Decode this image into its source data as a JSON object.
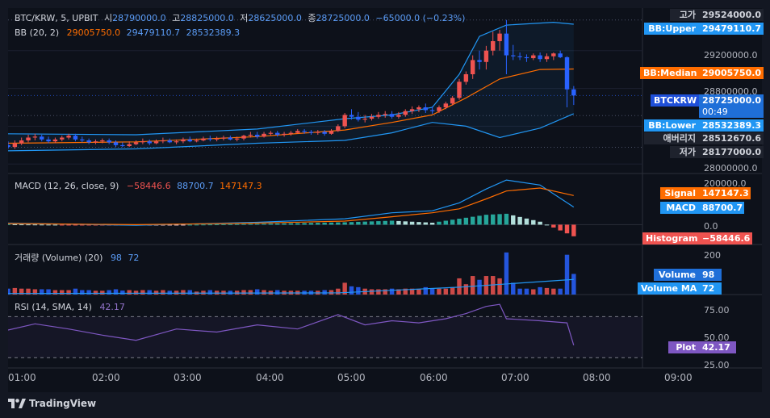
{
  "header": {
    "symbol": "BTC/KRW, 5, UPBIT",
    "open_label": "시",
    "open_value": "28790000.0",
    "high_label": "고",
    "high_value": "28825000.0",
    "low_label": "저",
    "low_value": "28625000.0",
    "close_label": "종",
    "close_value": "28725000.0",
    "change": "−65000.0 (−0.23%)"
  },
  "bb_legend": {
    "name": "BB (20, 2)",
    "median": "29005750.0",
    "upper": "29479110.7",
    "lower": "28532389.3"
  },
  "macd_legend": {
    "name": "MACD (12, 26, close, 9)",
    "hist": "−58446.6",
    "macd": "88700.7",
    "signal": "147147.3"
  },
  "vol_legend": {
    "name": "거래량 (Volume) (20)",
    "volume": "98",
    "ma": "72"
  },
  "rsi_legend": {
    "name": "RSI (14, SMA, 14)",
    "value": "42.17"
  },
  "price_axis": [
    "29200000.0",
    "28800000.0",
    "28000000.0"
  ],
  "macd_axis": [
    "200000.0",
    "0.0"
  ],
  "vol_axis": [
    "200"
  ],
  "rsi_axis": [
    "75.00",
    "50.00",
    "25.00"
  ],
  "price_badges": {
    "high": {
      "label": "고가",
      "value": "29524000.0"
    },
    "bb_upper": {
      "label": "BB:Upper",
      "value": "29479110.7"
    },
    "bb_median": {
      "label": "BB:Median",
      "value": "29005750.0"
    },
    "last": {
      "label": "BTCKRW",
      "value": "28725000.0",
      "countdown": "00:49"
    },
    "bb_lower": {
      "label": "BB:Lower",
      "value": "28532389.3"
    },
    "avg": {
      "label": "애버리지",
      "value": "28512670.6"
    },
    "low": {
      "label": "저가",
      "value": "28177000.0"
    }
  },
  "macd_badges": {
    "signal": {
      "label": "Signal",
      "value": "147147.3"
    },
    "macd": {
      "label": "MACD",
      "value": "88700.7"
    },
    "histogram": {
      "label": "Histogram",
      "value": "−58446.6"
    }
  },
  "vol_badges": {
    "volume": {
      "label": "Volume",
      "value": "98"
    },
    "ma": {
      "label": "Volume MA",
      "value": "72"
    }
  },
  "rsi_badges": {
    "plot": {
      "label": "Plot",
      "value": "42.17"
    }
  },
  "time_axis": [
    "01:00",
    "02:00",
    "03:00",
    "04:00",
    "05:00",
    "06:00",
    "07:00",
    "08:00",
    "09:00"
  ],
  "brand": "TradingView",
  "colors": {
    "up": "#ef5350",
    "down": "#2962ff",
    "bb_band": "#2196f3",
    "bb_median": "#ff6d00",
    "macd_line": "#2196f3",
    "signal_line": "#ff6d00",
    "hist_up": "#26a69a",
    "hist_down": "#ef5350",
    "rsi": "#7e57c2",
    "background": "#0d111a"
  },
  "chart_data": {
    "type": "candlestick",
    "symbol": "BTC/KRW",
    "interval": "5",
    "x_range": [
      "00:55",
      "09:10"
    ],
    "ylim": [
      27900000,
      29650000
    ],
    "x": [
      "00:55",
      "01:00",
      "01:05",
      "01:10",
      "01:15",
      "01:20",
      "01:25",
      "01:30",
      "01:35",
      "01:40",
      "01:45",
      "01:50",
      "01:55",
      "02:00",
      "02:05",
      "02:10",
      "02:15",
      "02:20",
      "02:25",
      "02:30",
      "02:35",
      "02:40",
      "02:45",
      "02:50",
      "02:55",
      "03:00",
      "03:05",
      "03:10",
      "03:15",
      "03:20",
      "03:25",
      "03:30",
      "03:35",
      "03:40",
      "03:45",
      "03:50",
      "03:55",
      "04:00",
      "04:05",
      "04:10",
      "04:15",
      "04:20",
      "04:25",
      "04:30",
      "04:35",
      "04:40",
      "04:45",
      "04:50",
      "04:55",
      "05:00",
      "05:05",
      "05:10",
      "05:15",
      "05:20",
      "05:25",
      "05:30",
      "05:35",
      "05:40",
      "05:45",
      "05:50",
      "05:55",
      "06:00",
      "06:05",
      "06:10",
      "06:15",
      "06:20",
      "06:25",
      "06:30",
      "06:35",
      "06:40",
      "06:45",
      "06:50",
      "06:55",
      "07:00",
      "07:05",
      "07:10",
      "07:15",
      "07:20",
      "07:25",
      "07:30",
      "07:35",
      "07:40",
      "07:45",
      "07:50",
      "07:55"
    ],
    "open": [
      28200000,
      28180000,
      28220000,
      28250000,
      28280000,
      28290000,
      28260000,
      28240000,
      28260000,
      28280000,
      28300000,
      28260000,
      28250000,
      28230000,
      28240000,
      28250000,
      28230000,
      28200000,
      28190000,
      28210000,
      28230000,
      28240000,
      28220000,
      28240000,
      28250000,
      28230000,
      28240000,
      28260000,
      28240000,
      28250000,
      28270000,
      28260000,
      28270000,
      28280000,
      28260000,
      28270000,
      28300000,
      28310000,
      28290000,
      28320000,
      28330000,
      28310000,
      28320000,
      28330000,
      28350000,
      28340000,
      28330000,
      28340000,
      28320000,
      28350000,
      28400000,
      28520000,
      28500000,
      28470000,
      28480000,
      28500000,
      28520000,
      28530000,
      28500000,
      28520000,
      28560000,
      28580000,
      28600000,
      28570000,
      28560000,
      28600000,
      28640000,
      28700000,
      28870000,
      28950000,
      29100000,
      29080000,
      29200000,
      29300000,
      29380000,
      29150000,
      29140000,
      29130000,
      29120000,
      29150000,
      29110000,
      29140000,
      29170000,
      29130000,
      28790000
    ],
    "high": [
      28240000,
      28250000,
      28280000,
      28310000,
      28320000,
      28310000,
      28290000,
      28280000,
      28300000,
      28320000,
      28320000,
      28290000,
      28270000,
      28260000,
      28270000,
      28270000,
      28250000,
      28230000,
      28240000,
      28250000,
      28270000,
      28260000,
      28260000,
      28280000,
      28270000,
      28260000,
      28280000,
      28290000,
      28270000,
      28290000,
      28300000,
      28290000,
      28300000,
      28300000,
      28290000,
      28310000,
      28340000,
      28340000,
      28340000,
      28350000,
      28350000,
      28340000,
      28350000,
      28370000,
      28370000,
      28360000,
      28360000,
      28360000,
      28370000,
      28420000,
      28540000,
      28580000,
      28550000,
      28520000,
      28530000,
      28550000,
      28560000,
      28560000,
      28550000,
      28580000,
      28610000,
      28620000,
      28640000,
      28610000,
      28620000,
      28660000,
      28720000,
      28900000,
      28980000,
      29150000,
      29200000,
      29250000,
      29400000,
      29420000,
      29524000,
      29260000,
      29180000,
      29160000,
      29170000,
      29180000,
      29170000,
      29180000,
      29200000,
      29140000,
      28825000
    ],
    "low": [
      28160000,
      28160000,
      28200000,
      28230000,
      28250000,
      28240000,
      28220000,
      28220000,
      28240000,
      28260000,
      28240000,
      28230000,
      28210000,
      28210000,
      28220000,
      28210000,
      28180000,
      28177000,
      28180000,
      28200000,
      28210000,
      28200000,
      28210000,
      28220000,
      28220000,
      28210000,
      28220000,
      28230000,
      28230000,
      28240000,
      28240000,
      28240000,
      28250000,
      28250000,
      28240000,
      28250000,
      28280000,
      28270000,
      28280000,
      28300000,
      28290000,
      28290000,
      28300000,
      28320000,
      28320000,
      28310000,
      28310000,
      28300000,
      28310000,
      28340000,
      28380000,
      28470000,
      28450000,
      28440000,
      28460000,
      28480000,
      28490000,
      28480000,
      28480000,
      28500000,
      28530000,
      28550000,
      28540000,
      28530000,
      28540000,
      28580000,
      28620000,
      28680000,
      28840000,
      28900000,
      29000000,
      29000000,
      29150000,
      29200000,
      28950000,
      29100000,
      29100000,
      29080000,
      29100000,
      29080000,
      29080000,
      29100000,
      29120000,
      28600000,
      28625000
    ],
    "close": [
      28180000,
      28220000,
      28250000,
      28280000,
      28290000,
      28260000,
      28240000,
      28260000,
      28280000,
      28300000,
      28260000,
      28250000,
      28230000,
      28240000,
      28250000,
      28230000,
      28200000,
      28190000,
      28210000,
      28230000,
      28240000,
      28220000,
      28240000,
      28250000,
      28230000,
      28240000,
      28260000,
      28240000,
      28250000,
      28270000,
      28260000,
      28270000,
      28280000,
      28260000,
      28270000,
      28300000,
      28310000,
      28290000,
      28320000,
      28330000,
      28310000,
      28320000,
      28330000,
      28350000,
      28340000,
      28330000,
      28340000,
      28320000,
      28350000,
      28400000,
      28520000,
      28500000,
      28470000,
      28480000,
      28500000,
      28520000,
      28530000,
      28500000,
      28520000,
      28560000,
      28580000,
      28600000,
      28570000,
      28560000,
      28600000,
      28640000,
      28700000,
      28870000,
      28950000,
      29100000,
      29080000,
      29200000,
      29300000,
      29380000,
      29150000,
      29140000,
      29130000,
      29120000,
      29150000,
      29110000,
      29140000,
      29170000,
      29130000,
      28790000,
      28725000
    ],
    "bb_upper_series": {
      "points": [
        [
          "00:55",
          28320000
        ],
        [
          "02:30",
          28310000
        ],
        [
          "04:00",
          28370000
        ],
        [
          "05:05",
          28480000
        ],
        [
          "05:40",
          28520000
        ],
        [
          "06:10",
          28600000
        ],
        [
          "06:30",
          28950000
        ],
        [
          "06:45",
          29350000
        ],
        [
          "07:05",
          29470000
        ],
        [
          "07:40",
          29500000
        ],
        [
          "07:55",
          29479110.7
        ]
      ]
    },
    "bb_median_series": {
      "points": [
        [
          "00:55",
          28220000
        ],
        [
          "02:30",
          28235000
        ],
        [
          "04:00",
          28290000
        ],
        [
          "05:05",
          28360000
        ],
        [
          "05:40",
          28440000
        ],
        [
          "06:10",
          28520000
        ],
        [
          "06:35",
          28700000
        ],
        [
          "07:00",
          28900000
        ],
        [
          "07:30",
          29000000
        ],
        [
          "07:55",
          29005750
        ]
      ]
    },
    "bb_lower_series": {
      "points": [
        [
          "00:55",
          28140000
        ],
        [
          "02:30",
          28160000
        ],
        [
          "04:00",
          28220000
        ],
        [
          "05:05",
          28250000
        ],
        [
          "05:40",
          28330000
        ],
        [
          "06:10",
          28440000
        ],
        [
          "06:35",
          28400000
        ],
        [
          "07:00",
          28280000
        ],
        [
          "07:30",
          28380000
        ],
        [
          "07:55",
          28532389.3
        ]
      ]
    },
    "high_marker": 29524000,
    "low_marker": 28177000,
    "average": 28512670.6,
    "macd": {
      "ylim": [
        -100000,
        250000
      ],
      "macd_series": {
        "points": [
          [
            "00:55",
            8000
          ],
          [
            "02:30",
            -3000
          ],
          [
            "04:00",
            12000
          ],
          [
            "05:05",
            30000
          ],
          [
            "05:40",
            60000
          ],
          [
            "06:10",
            70000
          ],
          [
            "06:30",
            110000
          ],
          [
            "06:50",
            180000
          ],
          [
            "07:05",
            225000
          ],
          [
            "07:30",
            200000
          ],
          [
            "07:55",
            88700.7
          ]
        ]
      },
      "signal_series": {
        "points": [
          [
            "00:55",
            6000
          ],
          [
            "02:30",
            0
          ],
          [
            "04:00",
            8000
          ],
          [
            "05:05",
            18000
          ],
          [
            "05:40",
            40000
          ],
          [
            "06:10",
            60000
          ],
          [
            "06:30",
            80000
          ],
          [
            "06:50",
            130000
          ],
          [
            "07:05",
            170000
          ],
          [
            "07:30",
            185000
          ],
          [
            "07:55",
            147147.3
          ]
        ]
      },
      "histogram_last": -58446.6
    },
    "volume": {
      "ylim": [
        0,
        230
      ],
      "last": 98,
      "ma": 72
    },
    "rsi": {
      "ylim": [
        20,
        90
      ],
      "levels": [
        70,
        30
      ],
      "series": {
        "points": [
          [
            "00:55",
            57
          ],
          [
            "01:15",
            63
          ],
          [
            "01:40",
            58
          ],
          [
            "02:05",
            52
          ],
          [
            "02:30",
            47
          ],
          [
            "03:00",
            58
          ],
          [
            "03:30",
            55
          ],
          [
            "04:00",
            62
          ],
          [
            "04:30",
            58
          ],
          [
            "05:00",
            72
          ],
          [
            "05:20",
            62
          ],
          [
            "05:40",
            66
          ],
          [
            "06:00",
            64
          ],
          [
            "06:20",
            68
          ],
          [
            "06:35",
            73
          ],
          [
            "06:50",
            80
          ],
          [
            "07:00",
            82
          ],
          [
            "07:05",
            68
          ],
          [
            "07:30",
            66
          ],
          [
            "07:50",
            64
          ],
          [
            "07:55",
            42.17
          ]
        ]
      }
    }
  }
}
